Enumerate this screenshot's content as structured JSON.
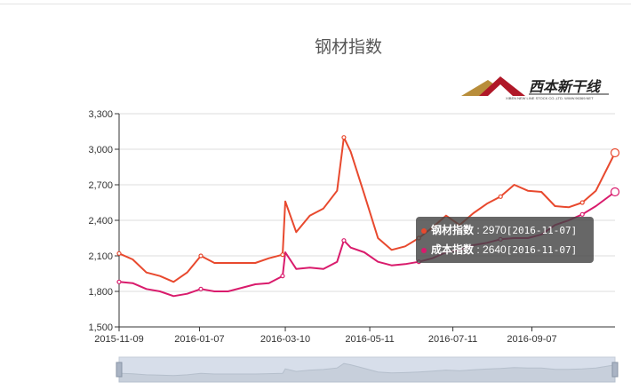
{
  "chart_data": {
    "type": "line",
    "title": "钢材指数",
    "ylim": [
      1500,
      3300
    ],
    "y_ticks": [
      "3,300",
      "3,000",
      "2,700",
      "2,400",
      "2,100",
      "1,800",
      "1,500"
    ],
    "x_tick_labels": [
      "2015-11-09",
      "2016-01-07",
      "2016-03-10",
      "2016-05-11",
      "2016-07-11",
      "2016-09-07"
    ],
    "grid": true,
    "x": [
      "2015-11-09",
      "2015-11-19",
      "2015-11-29",
      "2015-12-09",
      "2015-12-19",
      "2015-12-29",
      "2016-01-08",
      "2016-01-18",
      "2016-01-28",
      "2016-02-07",
      "2016-02-17",
      "2016-02-27",
      "2016-03-08",
      "2016-03-10",
      "2016-03-18",
      "2016-03-28",
      "2016-04-07",
      "2016-04-17",
      "2016-04-22",
      "2016-04-27",
      "2016-05-07",
      "2016-05-17",
      "2016-05-27",
      "2016-06-06",
      "2016-06-16",
      "2016-06-26",
      "2016-07-06",
      "2016-07-16",
      "2016-07-26",
      "2016-08-05",
      "2016-08-15",
      "2016-08-25",
      "2016-09-04",
      "2016-09-14",
      "2016-09-24",
      "2016-10-04",
      "2016-10-14",
      "2016-10-24",
      "2016-11-07"
    ],
    "series": [
      {
        "name": "钢材指数",
        "color": "#e8492e",
        "values": [
          2120,
          2070,
          1960,
          1930,
          1880,
          1960,
          2100,
          2040,
          2040,
          2040,
          2040,
          2080,
          2110,
          2560,
          2300,
          2440,
          2500,
          2650,
          3100,
          2980,
          2620,
          2250,
          2150,
          2180,
          2250,
          2340,
          2440,
          2360,
          2460,
          2540,
          2600,
          2700,
          2650,
          2640,
          2520,
          2510,
          2550,
          2650,
          2970
        ]
      },
      {
        "name": "成本指数",
        "color": "#d91b6c",
        "values": [
          1880,
          1870,
          1820,
          1800,
          1760,
          1780,
          1820,
          1800,
          1800,
          1830,
          1860,
          1870,
          1930,
          2130,
          1990,
          2000,
          1990,
          2050,
          2230,
          2170,
          2130,
          2050,
          2020,
          2030,
          2050,
          2080,
          2130,
          2150,
          2190,
          2210,
          2240,
          2250,
          2250,
          2280,
          2360,
          2400,
          2450,
          2520,
          2640
        ]
      }
    ],
    "tooltip": {
      "rows": [
        {
          "label": "钢材指数",
          "value": "2970",
          "date": "2016-11-07"
        },
        {
          "label": "成本指数",
          "value": "2640",
          "date": "2016-11-07"
        }
      ]
    }
  },
  "logo": {
    "text": "西本新干线",
    "subtext": "XIBEN NEW LINE STOCK CO.,LTD.   WWW.96369.NET"
  }
}
